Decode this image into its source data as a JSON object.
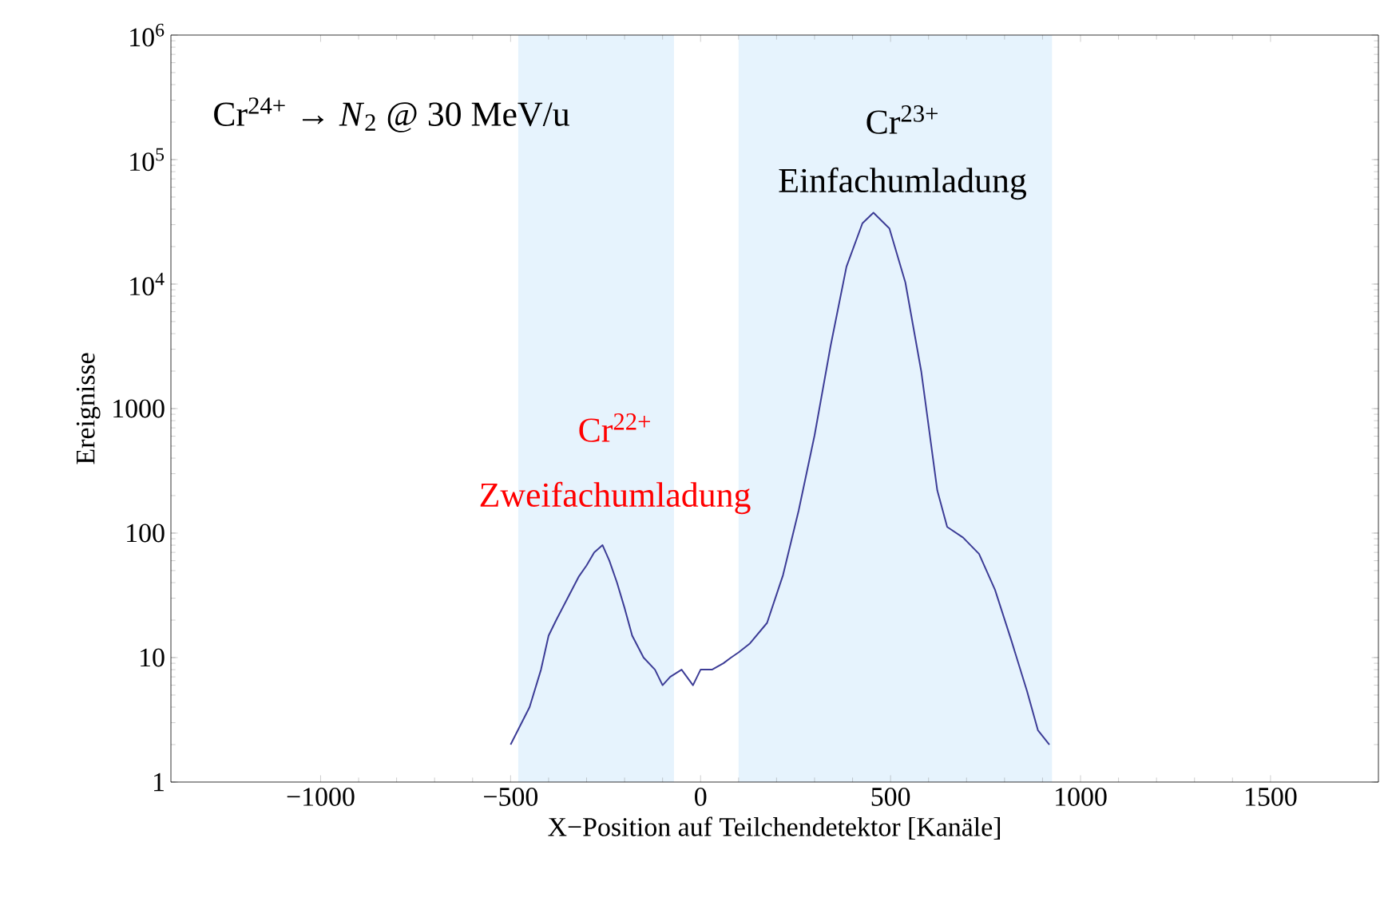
{
  "chart_data": {
    "type": "line",
    "xlabel": "X−Position auf Teilchendetektor [Kanäle]",
    "ylabel": "Ereignisse",
    "annotations": [
      "Cr$^{24+}$ → *N*$_{2}$ @ 30 MeV/u",
      "Cr$^{23+}$",
      "Einfachumladung",
      "Cr$^{22+}$",
      "Zweifachumladung"
    ],
    "x": [
      -500,
      -450,
      -420,
      -400,
      -380,
      -350,
      -320,
      -300,
      -280,
      -258,
      -240,
      -220,
      -200,
      -180,
      -150,
      -120,
      -100,
      -80,
      -50,
      -20,
      0,
      30,
      60,
      80,
      100,
      130,
      175,
      217,
      258,
      300,
      342,
      384,
      426,
      455,
      497,
      539,
      581,
      623,
      649,
      691,
      733,
      775,
      817,
      859,
      888,
      918
    ],
    "series": [
      {
        "color": "#3c3c96",
        "values": [
          2,
          4,
          8,
          15,
          20,
          30,
          45,
          55,
          70,
          80,
          60,
          40,
          25,
          15,
          10,
          8,
          6,
          7,
          8,
          6,
          8,
          8,
          9,
          10,
          11,
          13,
          19,
          46,
          151,
          610,
          3160,
          13800,
          30800,
          37500,
          28000,
          10300,
          1970,
          220,
          112,
          92,
          68,
          35,
          14,
          5.4,
          2.6,
          2
        ]
      }
    ],
    "bands": [
      {
        "axis": "x",
        "from": -480,
        "to": -70,
        "color": "#e6f3fd"
      },
      {
        "axis": "x",
        "from": 100,
        "to": 925,
        "color": "#e6f3fd"
      }
    ],
    "xlim": [
      -1394,
      1784
    ],
    "ylim": [
      1,
      1000000
    ],
    "log": "y",
    "xticks": [
      {
        "value": -1000,
        "label": "−1000"
      },
      {
        "value": -500,
        "label": "−500"
      },
      0,
      500,
      1000,
      1500
    ],
    "yticks": [
      1,
      10,
      100,
      1000,
      {
        "value": 10000,
        "label": "10$^{4}$"
      },
      {
        "value": 100000,
        "label": "10$^{5}$"
      },
      {
        "value": 1000000,
        "label": "10$^{6}$"
      }
    ],
    "grid": false
  }
}
